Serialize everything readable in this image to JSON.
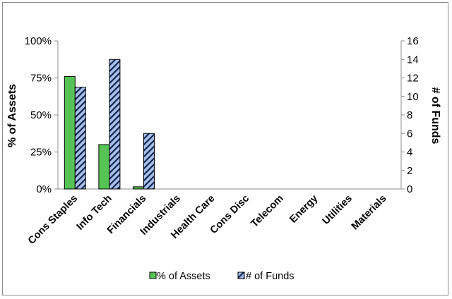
{
  "chart_data": {
    "type": "bar",
    "categories": [
      "Cons Staples",
      "Info Tech",
      "Financials",
      "Industrials",
      "Health Care",
      "Cons Disc",
      "Telecom",
      "Energy",
      "Utilities",
      "Materials"
    ],
    "series": [
      {
        "name": "% of Assets",
        "axis": "left",
        "values": [
          76,
          30,
          1.5,
          0,
          0,
          0,
          0,
          0,
          0,
          0
        ],
        "color": "#55c455",
        "pattern": "solid"
      },
      {
        "name": "# of Funds",
        "axis": "right",
        "values": [
          11,
          14,
          6,
          0,
          0,
          0,
          0,
          0,
          0,
          0
        ],
        "color": "#9fb8e6",
        "pattern": "diagonal-stripes-navy"
      }
    ],
    "y_left": {
      "label": "% of Assets",
      "lim": [
        0,
        100
      ],
      "ticks": [
        0,
        25,
        50,
        75,
        100
      ],
      "tick_labels": [
        "0%",
        "25%",
        "50%",
        "75%",
        "100%"
      ]
    },
    "y_right": {
      "label": "# of Funds",
      "lim": [
        0,
        16
      ],
      "ticks": [
        0,
        2,
        4,
        6,
        8,
        10,
        12,
        14,
        16
      ],
      "tick_labels": [
        "0",
        "2",
        "4",
        "6",
        "8",
        "10",
        "12",
        "14",
        "16"
      ]
    },
    "legend": {
      "position": "bottom",
      "items": [
        "% of Assets",
        "# of Funds"
      ]
    },
    "grid": false
  }
}
